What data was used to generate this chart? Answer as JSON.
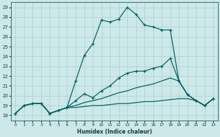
{
  "xlabel": "Humidex (Indice chaleur)",
  "bg_color": "#cce8e8",
  "grid_color": "#aacfcf",
  "line_color": "#006060",
  "xlim": [
    -0.5,
    23.5
  ],
  "ylim": [
    17.5,
    29.5
  ],
  "yticks": [
    18,
    19,
    20,
    21,
    22,
    23,
    24,
    25,
    26,
    27,
    28,
    29
  ],
  "xticks": [
    0,
    1,
    2,
    3,
    4,
    5,
    6,
    7,
    8,
    9,
    10,
    11,
    12,
    13,
    14,
    15,
    16,
    17,
    18,
    19,
    20,
    21,
    22,
    23
  ],
  "s1_x": [
    0,
    1,
    2,
    3,
    4,
    5,
    6,
    7,
    8,
    9,
    10,
    11,
    12,
    13,
    14,
    15,
    16,
    17,
    18,
    19,
    20,
    21,
    22,
    23
  ],
  "s1_y": [
    18.2,
    19.0,
    19.2,
    19.2,
    18.2,
    18.5,
    18.8,
    21.5,
    24.1,
    25.3,
    27.7,
    27.5,
    27.8,
    29.0,
    28.3,
    27.2,
    27.0,
    26.7,
    26.7,
    21.5,
    20.1,
    19.5,
    19.0,
    19.7
  ],
  "s2_x": [
    0,
    1,
    2,
    3,
    4,
    5,
    6,
    7,
    8,
    9,
    10,
    11,
    12,
    13,
    14,
    15,
    16,
    17,
    18,
    19,
    20,
    21,
    22,
    23
  ],
  "s2_y": [
    18.2,
    19.0,
    19.2,
    19.2,
    18.2,
    18.5,
    18.8,
    19.5,
    20.2,
    19.8,
    20.5,
    21.0,
    21.8,
    22.3,
    22.5,
    22.5,
    22.8,
    23.0,
    23.8,
    21.5,
    20.1,
    19.5,
    19.0,
    19.7
  ],
  "s3_x": [
    0,
    1,
    2,
    3,
    4,
    5,
    6,
    7,
    8,
    9,
    10,
    11,
    12,
    13,
    14,
    15,
    16,
    17,
    18,
    19,
    20,
    21,
    22,
    23
  ],
  "s3_y": [
    18.2,
    19.0,
    19.2,
    19.2,
    18.2,
    18.5,
    18.8,
    19.0,
    19.3,
    19.5,
    19.7,
    20.0,
    20.3,
    20.5,
    20.8,
    21.0,
    21.2,
    21.5,
    21.8,
    21.5,
    20.1,
    19.5,
    19.0,
    19.7
  ],
  "s4_x": [
    0,
    1,
    2,
    3,
    4,
    5,
    6,
    7,
    8,
    9,
    10,
    11,
    12,
    13,
    14,
    15,
    16,
    17,
    18,
    19,
    20,
    21,
    22,
    23
  ],
  "s4_y": [
    18.2,
    19.0,
    19.2,
    19.2,
    18.2,
    18.5,
    18.8,
    18.8,
    18.9,
    19.0,
    19.0,
    19.1,
    19.2,
    19.2,
    19.3,
    19.4,
    19.4,
    19.5,
    19.6,
    19.7,
    19.7,
    19.5,
    19.0,
    19.7
  ]
}
